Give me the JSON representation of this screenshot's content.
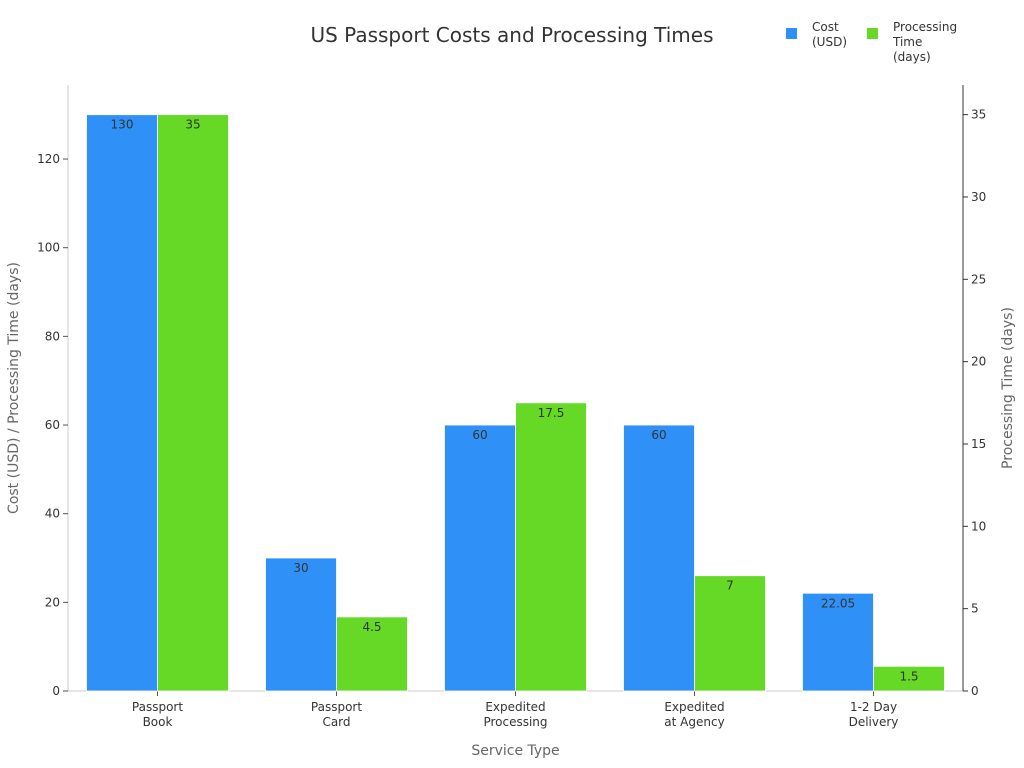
{
  "chart_data": {
    "type": "bar",
    "title": "US Passport Costs and Processing Times",
    "xlabel": "Service Type",
    "ylabel": "Cost (USD) / Processing Time (days)",
    "y2label": "Processing Time (days)",
    "categories": [
      [
        "Passport",
        "Book"
      ],
      [
        "Passport",
        "Card"
      ],
      [
        "Expedited",
        "Processing"
      ],
      [
        "Expedited",
        "at Agency"
      ],
      [
        "1-2 Day",
        "Delivery"
      ]
    ],
    "series": [
      {
        "name": "Cost (USD)",
        "legend_lines": [
          "Cost",
          "(USD)"
        ],
        "axis": "left",
        "color": "#2f91f7",
        "values": [
          130,
          30,
          60,
          60,
          22.05
        ],
        "labels": [
          "130",
          "30",
          "60",
          "60",
          "22.05"
        ]
      },
      {
        "name": "Processing Time (days)",
        "legend_lines": [
          "Processing",
          "Time",
          "(days)"
        ],
        "axis": "right",
        "color": "#66d926",
        "values": [
          35,
          4.5,
          17.5,
          7,
          1.5
        ],
        "labels": [
          "35",
          "4.5",
          "17.5",
          "7",
          "1.5"
        ]
      }
    ],
    "ylim": [
      0,
      136.7
    ],
    "y2lim": [
      0,
      36.8
    ],
    "yticks": [
      0,
      20,
      40,
      60,
      80,
      100,
      120
    ],
    "y2ticks": [
      0,
      5,
      10,
      15,
      20,
      25,
      30,
      35
    ],
    "grid": false,
    "legend": "top-right"
  }
}
